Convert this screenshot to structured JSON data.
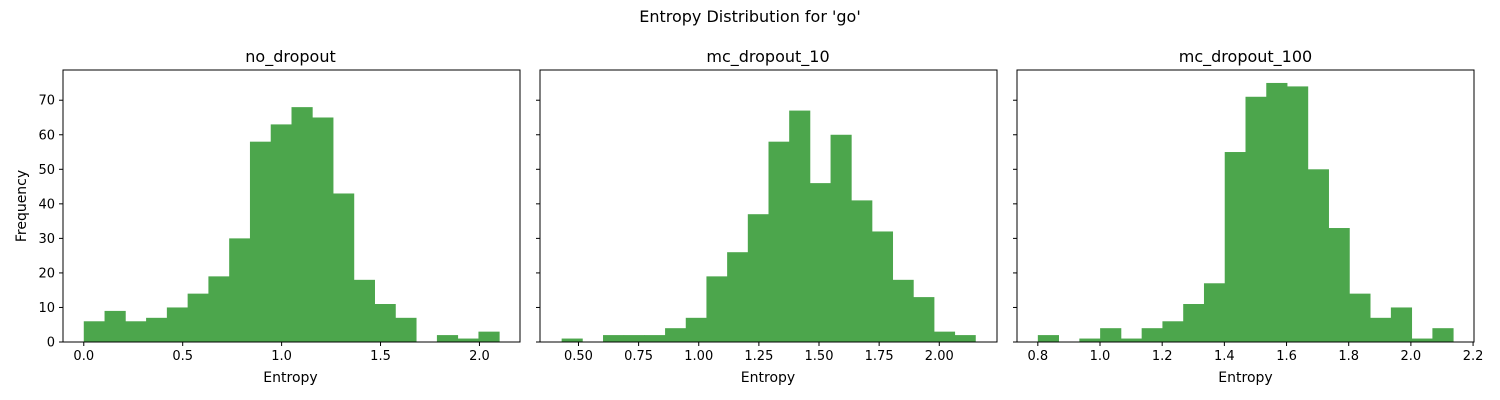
{
  "suptitle": "Entropy Distribution for 'go'",
  "colors": {
    "bar": "#4ca64c",
    "axis": "#000000"
  },
  "chart_data": [
    {
      "type": "bar",
      "title": "no_dropout",
      "xlabel": "Entropy",
      "ylabel": "Frequency",
      "xlim": [
        -0.105,
        2.205
      ],
      "ylim": [
        0,
        78.75
      ],
      "xticks": [
        0.0,
        0.5,
        1.0,
        1.5,
        2.0
      ],
      "xtick_labels": [
        "0.0",
        "0.5",
        "1.0",
        "1.5",
        "2.0"
      ],
      "yticks": [
        0,
        10,
        20,
        30,
        40,
        50,
        60,
        70
      ],
      "ytick_labels": [
        "0",
        "10",
        "20",
        "30",
        "40",
        "50",
        "60",
        "70"
      ],
      "bin_edges": [
        0.0,
        0.105,
        0.21,
        0.315,
        0.42,
        0.525,
        0.63,
        0.735,
        0.84,
        0.945,
        1.05,
        1.155,
        1.26,
        1.365,
        1.47,
        1.575,
        1.68,
        1.785,
        1.89,
        1.995,
        2.1
      ],
      "values": [
        6,
        9,
        6,
        7,
        10,
        14,
        19,
        30,
        58,
        63,
        68,
        65,
        43,
        18,
        11,
        7,
        0,
        2,
        1,
        3
      ]
    },
    {
      "type": "bar",
      "title": "mc_dropout_10",
      "xlabel": "Entropy",
      "ylabel": "",
      "xlim": [
        0.34,
        2.24
      ],
      "ylim": [
        0,
        78.75
      ],
      "xticks": [
        0.5,
        0.75,
        1.0,
        1.25,
        1.5,
        1.75,
        2.0
      ],
      "xtick_labels": [
        "0.50",
        "0.75",
        "1.00",
        "1.25",
        "1.50",
        "1.75",
        "2.00"
      ],
      "yticks": [
        0,
        10,
        20,
        30,
        40,
        50,
        60,
        70
      ],
      "ytick_labels": [],
      "bin_edges": [
        0.43,
        0.516,
        0.602,
        0.688,
        0.774,
        0.86,
        0.946,
        1.032,
        1.118,
        1.204,
        1.29,
        1.376,
        1.462,
        1.548,
        1.634,
        1.72,
        1.806,
        1.892,
        1.978,
        2.064,
        2.15
      ],
      "values": [
        1,
        0,
        2,
        2,
        2,
        4,
        7,
        19,
        26,
        37,
        58,
        67,
        46,
        60,
        41,
        32,
        18,
        13,
        3,
        2
      ]
    },
    {
      "type": "bar",
      "title": "mc_dropout_100",
      "xlabel": "Entropy",
      "ylabel": "",
      "xlim": [
        0.733,
        2.203
      ],
      "ylim": [
        0,
        78.75
      ],
      "xticks": [
        0.8,
        1.0,
        1.2,
        1.4,
        1.6,
        1.8,
        2.0,
        2.2
      ],
      "xtick_labels": [
        "0.8",
        "1.0",
        "1.2",
        "1.4",
        "1.6",
        "1.8",
        "2.0",
        "2.2"
      ],
      "yticks": [
        0,
        10,
        20,
        30,
        40,
        50,
        60,
        70
      ],
      "ytick_labels": [],
      "bin_edges": [
        0.8,
        0.8668,
        0.9336,
        1.0004,
        1.0672,
        1.134,
        1.2008,
        1.2676,
        1.3344,
        1.4012,
        1.468,
        1.5348,
        1.6016,
        1.6684,
        1.7352,
        1.802,
        1.8688,
        1.9356,
        2.0024,
        2.0692,
        2.136
      ],
      "values": [
        2,
        0,
        1,
        4,
        1,
        4,
        6,
        11,
        17,
        55,
        71,
        75,
        74,
        50,
        33,
        14,
        7,
        10,
        1,
        4
      ]
    }
  ]
}
